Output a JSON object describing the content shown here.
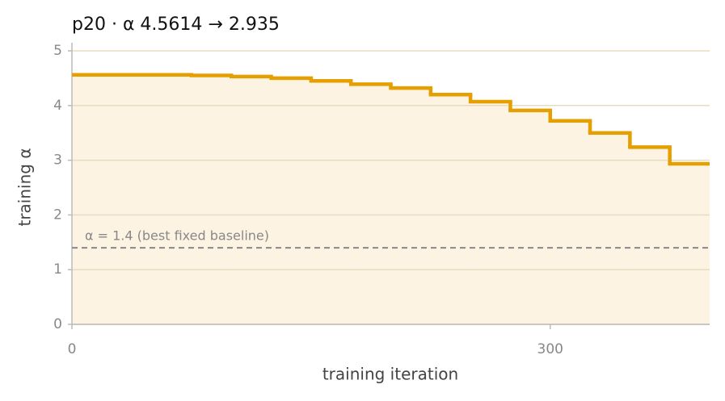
{
  "chart_data": {
    "type": "step",
    "title": "p20   ·   α 4.5614 → 2.935",
    "xlabel": "training iteration",
    "ylabel": "training α",
    "x": [
      0,
      75,
      100,
      125,
      150,
      175,
      200,
      225,
      250,
      275,
      300,
      325,
      350,
      375
    ],
    "series": [
      {
        "name": "training α",
        "color": "#e69f00",
        "values": [
          4.5614,
          4.55,
          4.53,
          4.5,
          4.45,
          4.39,
          4.32,
          4.2,
          4.07,
          3.91,
          3.72,
          3.5,
          3.24,
          2.935
        ]
      }
    ],
    "fill_color": "#fdf3e3",
    "baseline": {
      "value": 1.4,
      "label": "α = 1.4 (best fixed baseline)",
      "color": "#888888"
    },
    "xlim": [
      0,
      400
    ],
    "ylim": [
      0,
      5
    ],
    "xticks": [
      0,
      300
    ],
    "yticks": [
      0,
      1,
      2,
      3,
      4,
      5
    ],
    "grid": true
  }
}
